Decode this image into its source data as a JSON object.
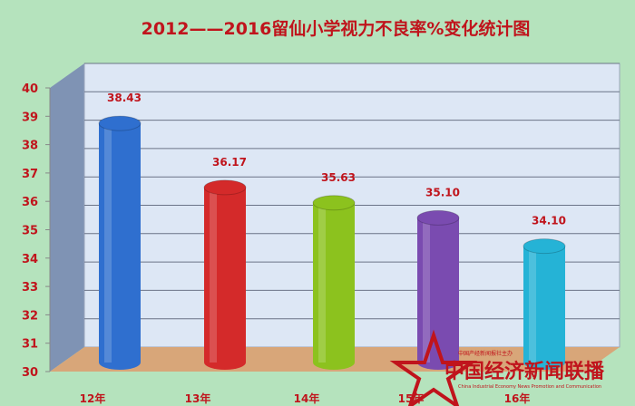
{
  "chart_data": {
    "type": "bar",
    "title": "2012——2016留仙小学视力不良率%变化统计图",
    "categories": [
      "12年",
      "13年",
      "14年",
      "15年",
      "16年"
    ],
    "values": [
      38.43,
      36.17,
      35.63,
      35.1,
      34.1
    ],
    "value_labels": [
      "38.43",
      "36.17",
      "35.63",
      "35.10",
      "34.10"
    ],
    "ylim": [
      30,
      40
    ],
    "yticks": [
      "30",
      "31",
      "32",
      "33",
      "34",
      "35",
      "36",
      "37",
      "38",
      "39",
      "40"
    ],
    "grid": true,
    "colors": [
      "#2f6fcf",
      "#d42a2a",
      "#8cc21e",
      "#7a4bb0",
      "#25b3d6"
    ],
    "xlabel": "",
    "ylabel": ""
  },
  "watermark": {
    "text": "中国经济新闻联播",
    "small_top": "中国产经新闻报社主办",
    "small_bottom": "China Industrial Economy News Promotion and Communication"
  }
}
